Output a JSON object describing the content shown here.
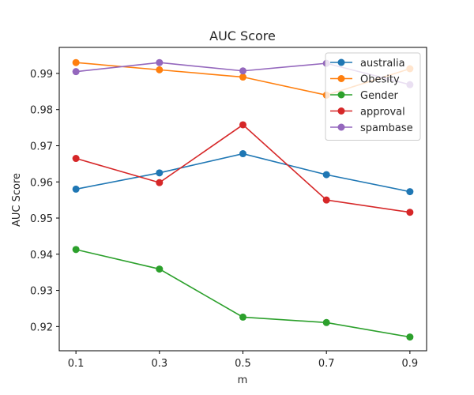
{
  "chart_data": {
    "type": "line",
    "title": "AUC Score",
    "xlabel": "m",
    "ylabel": "AUC Score",
    "x": [
      0.1,
      0.3,
      0.5,
      0.7,
      0.9
    ],
    "x_tick_labels": [
      "0.1",
      "0.3",
      "0.5",
      "0.7",
      "0.9"
    ],
    "xlim": [
      0.06,
      0.94
    ],
    "ylim": [
      0.9133,
      0.9972
    ],
    "y_ticks": [
      0.92,
      0.93,
      0.94,
      0.95,
      0.96,
      0.97,
      0.98,
      0.99
    ],
    "y_tick_labels": [
      "0.92",
      "0.93",
      "0.94",
      "0.95",
      "0.96",
      "0.97",
      "0.98",
      "0.99"
    ],
    "grid": false,
    "legend_position": "top-right",
    "series": [
      {
        "name": "australia",
        "color": "#1f77b4",
        "values": [
          0.958,
          0.9625,
          0.9678,
          0.962,
          0.9573
        ]
      },
      {
        "name": "Obesity",
        "color": "#ff7f0e",
        "values": [
          0.993,
          0.991,
          0.989,
          0.984,
          0.9913
        ]
      },
      {
        "name": "Gender",
        "color": "#2ca02c",
        "values": [
          0.9413,
          0.9359,
          0.9226,
          0.9211,
          0.9171
        ]
      },
      {
        "name": "approval",
        "color": "#d62728",
        "values": [
          0.9665,
          0.9598,
          0.9758,
          0.955,
          0.9516
        ]
      },
      {
        "name": "spambase",
        "color": "#9467bd",
        "values": [
          0.9905,
          0.993,
          0.9907,
          0.9928,
          0.9869
        ]
      }
    ]
  }
}
